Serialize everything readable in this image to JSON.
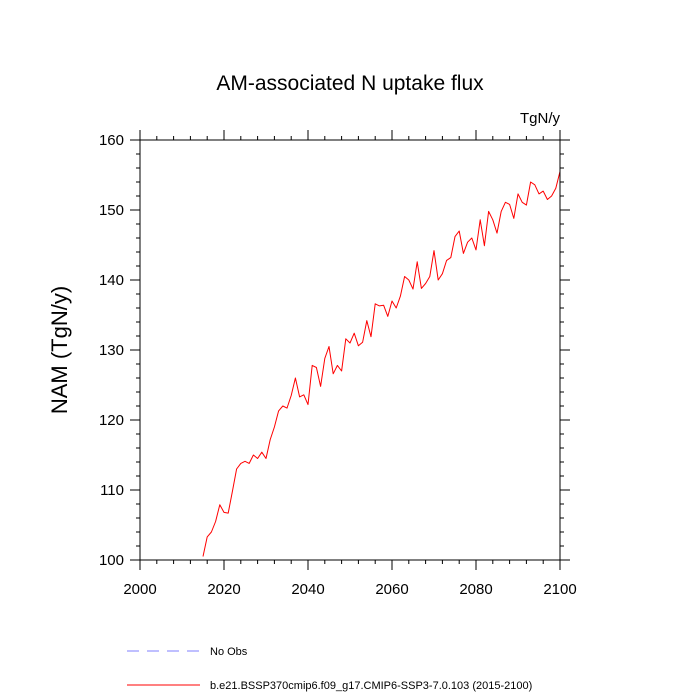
{
  "chart_data": {
    "type": "line",
    "title": "AM-associated N uptake flux",
    "units_label": "TgN/y",
    "xlabel": "",
    "ylabel": "NAM  (TgN/y)",
    "xlim": [
      2000,
      2100
    ],
    "ylim": [
      100,
      160
    ],
    "x_ticks": [
      2000,
      2020,
      2040,
      2060,
      2080,
      2100
    ],
    "y_ticks": [
      100,
      110,
      120,
      130,
      140,
      150,
      160
    ],
    "x_tick_labels": [
      "2000",
      "2020",
      "2040",
      "2060",
      "2080",
      "2100"
    ],
    "y_tick_labels": [
      "100",
      "110",
      "120",
      "130",
      "140",
      "150",
      "160"
    ],
    "grid": false,
    "legend_position": "bottom",
    "legend": [
      {
        "label": "No Obs",
        "color": "#7f7fff",
        "style": "dashed"
      },
      {
        "label": "b.e21.BSSP370cmip6.f09_g17.CMIP6-SSP3-7.0.103 (2015-2100)",
        "color": "#ff0000",
        "style": "solid"
      }
    ],
    "series": [
      {
        "color": "#ff0000",
        "x": [
          2015,
          2016,
          2017,
          2018,
          2019,
          2020,
          2021,
          2022,
          2023,
          2024,
          2025,
          2026,
          2027,
          2028,
          2029,
          2030,
          2031,
          2032,
          2033,
          2034,
          2035,
          2036,
          2037,
          2038,
          2039,
          2040,
          2041,
          2042,
          2043,
          2044,
          2045,
          2046,
          2047,
          2048,
          2049,
          2050,
          2051,
          2052,
          2053,
          2054,
          2055,
          2056,
          2057,
          2058,
          2059,
          2060,
          2061,
          2062,
          2063,
          2064,
          2065,
          2066,
          2067,
          2068,
          2069,
          2070,
          2071,
          2072,
          2073,
          2074,
          2075,
          2076,
          2077,
          2078,
          2079,
          2080,
          2081,
          2082,
          2083,
          2084,
          2085,
          2086,
          2087,
          2088,
          2089,
          2090,
          2091,
          2092,
          2093,
          2094,
          2095,
          2096,
          2097,
          2098,
          2099,
          2100
        ],
        "y": [
          100.5,
          103.3,
          104.0,
          105.5,
          107.9,
          106.8,
          106.7,
          109.8,
          113.0,
          113.8,
          114.1,
          113.8,
          115.0,
          114.5,
          115.4,
          114.5,
          117.2,
          119.0,
          121.3,
          122.0,
          121.7,
          123.5,
          126.0,
          123.3,
          123.6,
          122.2,
          127.8,
          127.5,
          124.8,
          128.8,
          130.5,
          126.6,
          127.8,
          127.0,
          131.6,
          131.0,
          132.4,
          130.6,
          131.1,
          134.2,
          131.9,
          136.6,
          136.3,
          136.4,
          134.8,
          137.0,
          136.0,
          137.7,
          140.5,
          140.0,
          138.7,
          142.6,
          138.8,
          139.5,
          140.5,
          144.2,
          140.0,
          140.9,
          142.8,
          143.2,
          146.2,
          147.0,
          143.8,
          145.4,
          146.0,
          144.3,
          148.6,
          144.9,
          149.8,
          148.6,
          146.7,
          149.8,
          151.1,
          150.8,
          148.8,
          152.3,
          151.1,
          150.7,
          154.0,
          153.6,
          152.3,
          152.7,
          151.5,
          152.0,
          153.1,
          155.5
        ]
      }
    ]
  }
}
